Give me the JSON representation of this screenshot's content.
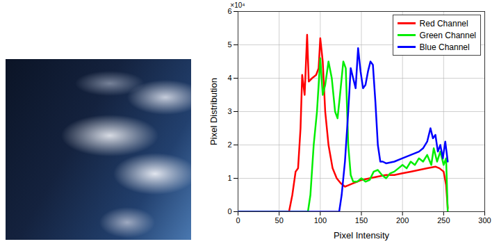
{
  "chart_data": {
    "type": "line",
    "x_label": "Pixel Intensity",
    "y_label": "Pixel Distribution",
    "annotations": [
      "×10⁴"
    ],
    "xlim": [
      0,
      300
    ],
    "xticks": [
      0,
      50,
      100,
      150,
      200,
      250,
      300
    ],
    "ylim": [
      0,
      6
    ],
    "yticks": [
      0,
      1,
      2,
      3,
      4,
      5,
      6
    ],
    "grid": true,
    "legend": "top-right",
    "series": [
      {
        "name": "Red Channel",
        "color": "#ff0000",
        "x": [
          0,
          62,
          66,
          70,
          73,
          76,
          78,
          81,
          84,
          86,
          90,
          95,
          98,
          100,
          103,
          106,
          110,
          115,
          120,
          125,
          130,
          135,
          140,
          145,
          150,
          160,
          170,
          180,
          190,
          200,
          210,
          220,
          230,
          240,
          245,
          250,
          253,
          255
        ],
        "values": [
          0,
          0,
          0.5,
          1.2,
          1.3,
          2.5,
          4.1,
          3.5,
          5.3,
          3.9,
          4.0,
          4.1,
          4.3,
          5.2,
          4.5,
          3.0,
          2.0,
          1.3,
          1.0,
          0.85,
          0.75,
          0.8,
          0.85,
          0.9,
          0.95,
          1.0,
          1.05,
          1.1,
          1.1,
          1.15,
          1.2,
          1.25,
          1.3,
          1.35,
          1.3,
          1.2,
          0.8,
          0.1
        ]
      },
      {
        "name": "Green Channel",
        "color": "#00ee00",
        "x": [
          0,
          85,
          88,
          92,
          96,
          100,
          103,
          106,
          110,
          114,
          118,
          121,
          124,
          128,
          131,
          134,
          137,
          140,
          145,
          150,
          155,
          160,
          165,
          170,
          175,
          180,
          185,
          190,
          195,
          200,
          205,
          210,
          215,
          220,
          225,
          230,
          235,
          238,
          242,
          246,
          250,
          253,
          255
        ],
        "values": [
          0,
          0,
          0.5,
          2.0,
          3.0,
          4.6,
          3.5,
          3.8,
          4.5,
          4.0,
          3.0,
          2.8,
          3.5,
          4.5,
          4.3,
          2.0,
          1.1,
          0.9,
          0.9,
          1.0,
          0.9,
          0.95,
          1.2,
          1.25,
          1.1,
          1.0,
          1.15,
          1.2,
          1.3,
          1.4,
          1.3,
          1.5,
          1.4,
          1.6,
          1.5,
          1.7,
          1.4,
          1.9,
          1.5,
          1.8,
          1.4,
          1.6,
          0.0
        ]
      },
      {
        "name": "Blue Channel",
        "color": "#0000ff",
        "x": [
          0,
          123,
          126,
          130,
          134,
          137,
          140,
          143,
          146,
          149,
          152,
          155,
          158,
          161,
          164,
          167,
          170,
          173,
          176,
          180,
          190,
          200,
          210,
          220,
          225,
          230,
          234,
          237,
          240,
          243,
          246,
          249,
          252,
          255
        ],
        "values": [
          0,
          0,
          0.5,
          1.5,
          3.0,
          4.3,
          4.0,
          3.7,
          4.9,
          4.2,
          3.7,
          3.8,
          4.2,
          4.5,
          4.4,
          3.3,
          2.0,
          1.5,
          1.5,
          1.45,
          1.5,
          1.6,
          1.7,
          1.8,
          1.9,
          2.1,
          2.5,
          2.2,
          2.3,
          1.8,
          2.0,
          1.6,
          2.1,
          1.5
        ]
      }
    ]
  }
}
